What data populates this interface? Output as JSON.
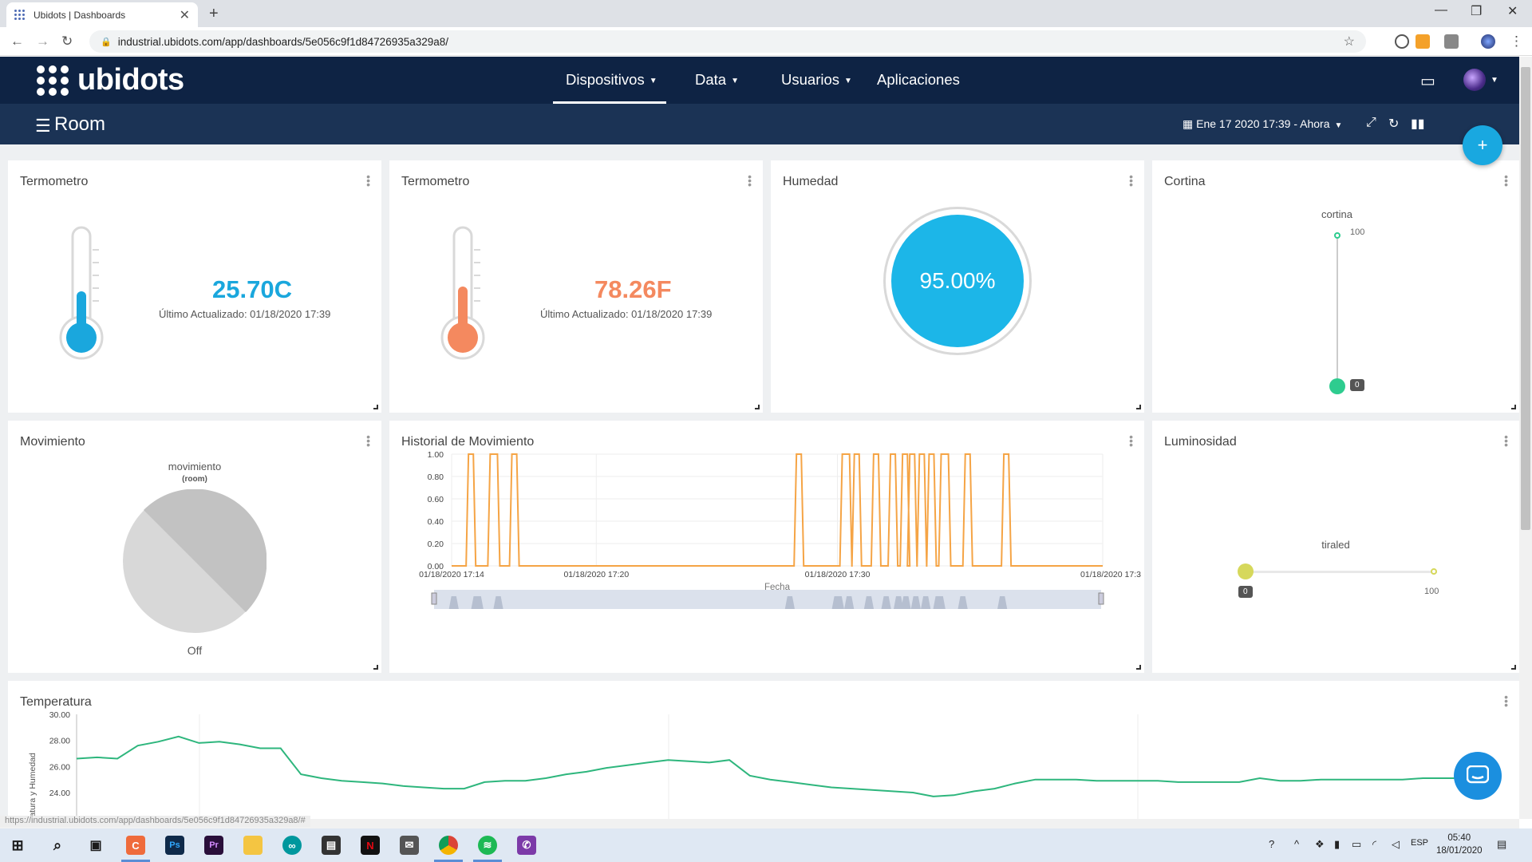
{
  "browser": {
    "tab_title": "Ubidots | Dashboards",
    "url": "industrial.ubidots.com/app/dashboards/5e056c9f1d84726935a329a8/",
    "status_url": "https://industrial.ubidots.com/app/dashboards/5e056c9f1d84726935a329a8/#"
  },
  "header": {
    "logo": "ubidots",
    "menu": [
      "Dispositivos",
      "Data",
      "Usuarios",
      "Aplicaciones"
    ]
  },
  "subheader": {
    "title": "Room",
    "date_range": "Ene 17 2020 17:39 - Ahora"
  },
  "widgets": {
    "therm_c": {
      "title": "Termometro",
      "value": "25.70C",
      "updated": "Último Actualizado: 01/18/2020 17:39",
      "color": "#1aa7dd",
      "level": 0.4
    },
    "therm_f": {
      "title": "Termometro",
      "value": "78.26F",
      "updated": "Último Actualizado: 01/18/2020 17:39",
      "color": "#f4895f",
      "level": 0.45
    },
    "humedad": {
      "title": "Humedad",
      "value": "95.00%",
      "fraction": 0.95,
      "color": "#1cb6e8"
    },
    "cortina": {
      "title": "Cortina",
      "label": "cortina",
      "max": "100",
      "value": "0"
    },
    "movimiento": {
      "title": "Movimiento",
      "variable": "movimiento",
      "device": "(room)",
      "state": "Off"
    },
    "historial": {
      "title": "Historial de Movimiento",
      "xlabel": "Fecha"
    },
    "luminosidad": {
      "title": "Luminosidad",
      "label": "tiraled",
      "min": "0",
      "max": "100"
    },
    "temperatura": {
      "title": "Temperatura",
      "ylabel": "eratura y Humedad"
    }
  },
  "chart_data": [
    {
      "type": "line",
      "title": "Historial de Movimiento",
      "xlabel": "Fecha",
      "ylabel": "",
      "ylim": [
        0,
        1
      ],
      "yticks": [
        "1.00",
        "0.80",
        "0.60",
        "0.40",
        "0.20",
        "0.00"
      ],
      "xticks": [
        "01/18/2020 17:14",
        "01/18/2020 17:20",
        "01/18/2020 17:30",
        "01/18/2020 17:3"
      ],
      "x_minutes_range": [
        14,
        41
      ],
      "pulses": [
        [
          14.7,
          14.9
        ],
        [
          15.6,
          15.9
        ],
        [
          16.5,
          16.7
        ],
        [
          28.3,
          28.5
        ],
        [
          30.2,
          30.5
        ],
        [
          30.7,
          30.9
        ],
        [
          31.5,
          31.7
        ],
        [
          32.2,
          32.4
        ],
        [
          32.7,
          32.9
        ],
        [
          33.0,
          33.2
        ],
        [
          33.4,
          33.6
        ],
        [
          33.8,
          34.0
        ],
        [
          34.3,
          34.6
        ],
        [
          35.3,
          35.5
        ],
        [
          36.9,
          37.1
        ]
      ],
      "color": "#f5a445",
      "grid": true
    },
    {
      "type": "line",
      "title": "Temperatura",
      "ylabel": "eratura y Humedad",
      "yticks": [
        "30.00",
        "28.00",
        "26.00",
        "24.00"
      ],
      "ylim": [
        23,
        30
      ],
      "values": [
        26.6,
        26.7,
        26.6,
        27.6,
        27.9,
        28.3,
        27.8,
        27.9,
        27.7,
        27.4,
        27.4,
        25.4,
        25.1,
        24.9,
        24.8,
        24.7,
        24.5,
        24.4,
        24.3,
        24.3,
        24.8,
        24.9,
        24.9,
        25.1,
        25.4,
        25.6,
        25.9,
        26.1,
        26.3,
        26.5,
        26.4,
        26.3,
        26.5,
        25.3,
        25.0,
        24.8,
        24.6,
        24.4,
        24.3,
        24.2,
        24.1,
        24.0,
        23.7,
        23.8,
        24.1,
        24.3,
        24.7,
        25.0,
        25.0,
        25.0,
        24.9,
        24.9,
        24.9,
        24.9,
        24.8,
        24.8,
        24.8,
        24.8,
        25.1,
        24.9,
        24.9,
        25.0,
        25.0,
        25.0,
        25.0,
        25.0,
        25.1,
        25.1,
        25.1,
        25.1
      ],
      "color": "#2eb67d"
    }
  ],
  "taskbar": {
    "lang": "ESP",
    "time": "05:40",
    "date": "18/01/2020"
  }
}
